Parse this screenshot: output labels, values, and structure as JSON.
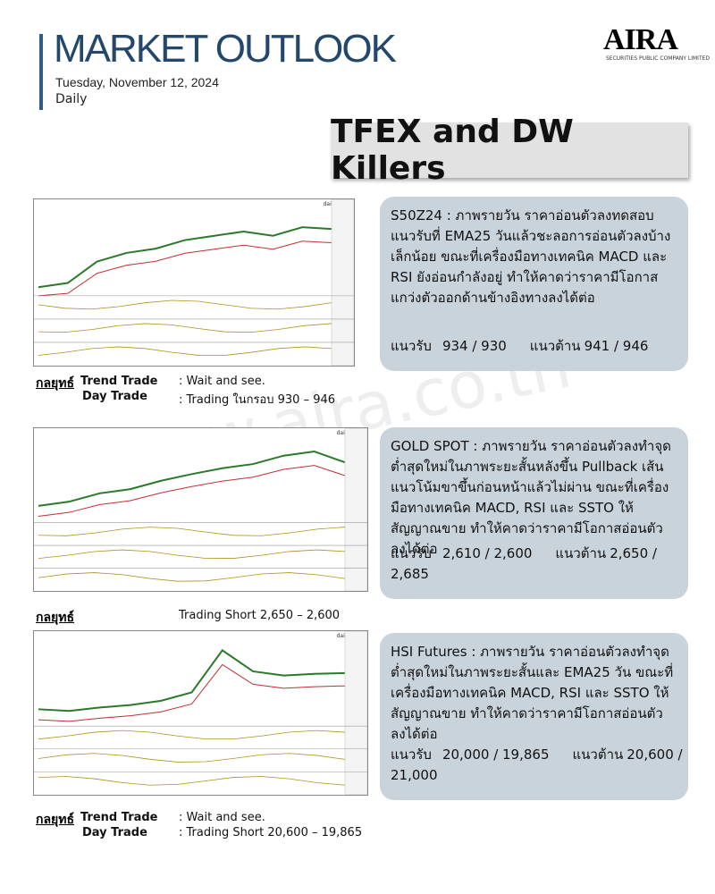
{
  "header": {
    "title": "MARKET OUTLOOK",
    "date": "Tuesday, November 12, 2024",
    "frequency": "Daily",
    "logo": "AIRA",
    "logo_sub": "SECURITIES PUBLIC COMPANY LIMITED"
  },
  "section_title": "TFEX and DW Killers",
  "watermark": "www.aira.co.th",
  "sections": [
    {
      "chart_label": "daily",
      "analysis": "S50Z24 :  ภาพรายวัน ราคาอ่อนตัวลงทดสอบแนวรับที่ EMA25 วันแล้วชะลอการอ่อนตัวลงบ้างเล็กน้อย ขณะที่เครื่องมือทางเทคนิค MACD และ RSI ยังอ่อนกำลังอยู่ ทำให้คาดว่าราคามีโอกาสแกว่งตัวออกด้านข้างอิงทางลงได้ต่อ",
      "support_label": "แนวรับ",
      "support": "934 / 930",
      "resistance_label": "แนวต้าน",
      "resistance": "941 / 946",
      "strategy_label": "กลยุทธ์",
      "strategy": [
        {
          "name": "Trend Trade",
          "text": ": Wait and see."
        },
        {
          "name": "Day Trade",
          "text": ": Trading ในกรอบ 930 – 946"
        }
      ]
    },
    {
      "chart_label": "daily",
      "analysis": "GOLD SPOT :  ภาพรายวัน ราคาอ่อนตัวลงทำจุดต่ำสุดใหม่ในภาพระยะสั้นหลังขึ้น Pullback เส้นแนวโน้มขาขึ้นก่อนหน้าแล้วไม่ผ่าน ขณะที่เครื่องมือทางเทคนิค MACD, RSI และ SSTO ให้สัญญาณขาย ทำให้คาดว่าราคามีโอกาสอ่อนตัวลงได้ต่อ",
      "support_label": "แนวรับ",
      "support": "2,610 / 2,600",
      "resistance_label": "แนวต้าน",
      "resistance": "2,650 / 2,685",
      "strategy_label": "กลยุทธ์",
      "strategy": [
        {
          "text": "Trading Short 2,650 – 2,600"
        }
      ]
    },
    {
      "chart_label": "daily",
      "analysis": "HSI Futures :  ภาพรายวัน ราคาอ่อนตัวลงทำจุดต่ำสุดใหม่ในภาพระยะสั้นและ EMA25 วัน ขณะที่เครื่องมือทางเทคนิค MACD, RSI และ SSTO ให้สัญญาณขาย ทำให้คาดว่าราคามีโอกาสอ่อนตัวลงได้ต่อ",
      "support_label": "แนวรับ",
      "support": "20,000 / 19,865",
      "resistance_label": "แนวต้าน",
      "resistance": "20,600 / 21,000",
      "strategy_label": "กลยุทธ์",
      "strategy": [
        {
          "name": "Trend Trade",
          "text": ": Wait and see."
        },
        {
          "name": "Day Trade",
          "text": ": Trading Short 20,600 – 19,865"
        }
      ]
    }
  ]
}
